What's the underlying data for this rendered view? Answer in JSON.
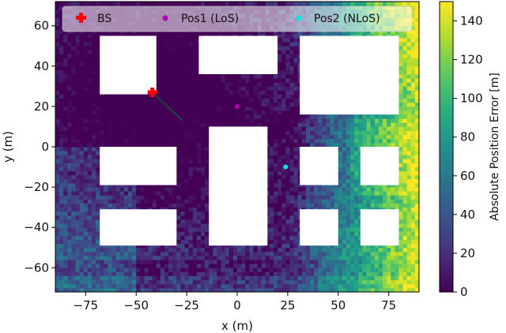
{
  "chart_data": {
    "type": "heatmap",
    "title": "",
    "xlabel": "x (m)",
    "ylabel": "y (m)",
    "xlim": [
      -90,
      90
    ],
    "ylim": [
      -72,
      72
    ],
    "xticks": [
      -75,
      -50,
      -25,
      0,
      25,
      50,
      75
    ],
    "xtick_labels": [
      "−75",
      "−50",
      "−25",
      "0",
      "25",
      "50",
      "75"
    ],
    "yticks": [
      -60,
      -40,
      -20,
      0,
      20,
      40,
      60
    ],
    "ytick_labels": [
      "−60",
      "−40",
      "−20",
      "0",
      "20",
      "40",
      "60"
    ],
    "grid": false,
    "colormap": "viridis",
    "colorbar": {
      "label": "Absolute Position Error [m]",
      "range": [
        0,
        150
      ],
      "ticks": [
        0,
        20,
        40,
        60,
        80,
        100,
        120,
        140
      ],
      "tick_labels": [
        "0",
        "20",
        "40",
        "60",
        "80",
        "100",
        "120",
        "140"
      ]
    },
    "buildings": [
      {
        "x": [
          -68,
          -40
        ],
        "y": [
          26,
          55
        ]
      },
      {
        "x": [
          -19,
          20
        ],
        "y": [
          36,
          55
        ]
      },
      {
        "x": [
          31,
          80
        ],
        "y": [
          16,
          55
        ]
      },
      {
        "x": [
          -68,
          -30
        ],
        "y": [
          -19,
          0
        ]
      },
      {
        "x": [
          -14,
          15
        ],
        "y": [
          -49,
          10
        ]
      },
      {
        "x": [
          31,
          50
        ],
        "y": [
          -19,
          0
        ]
      },
      {
        "x": [
          61,
          80
        ],
        "y": [
          -19,
          0
        ]
      },
      {
        "x": [
          -68,
          -30
        ],
        "y": [
          -49,
          -31
        ]
      },
      {
        "x": [
          31,
          50
        ],
        "y": [
          -49,
          -31
        ]
      },
      {
        "x": [
          61,
          80
        ],
        "y": [
          -49,
          -31
        ]
      }
    ],
    "series": [
      {
        "name": "BS",
        "marker": "plus",
        "color": "#ff0000",
        "points": [
          [
            -42,
            27
          ]
        ]
      },
      {
        "name": "Pos1 (LoS)",
        "marker": "dot",
        "color": "#b400b4",
        "points": [
          [
            0,
            20
          ]
        ]
      },
      {
        "name": "Pos2 (NLoS)",
        "marker": "dot",
        "color": "#00e5e5",
        "points": [
          [
            24,
            -10
          ]
        ]
      }
    ],
    "legend_position": "top"
  }
}
